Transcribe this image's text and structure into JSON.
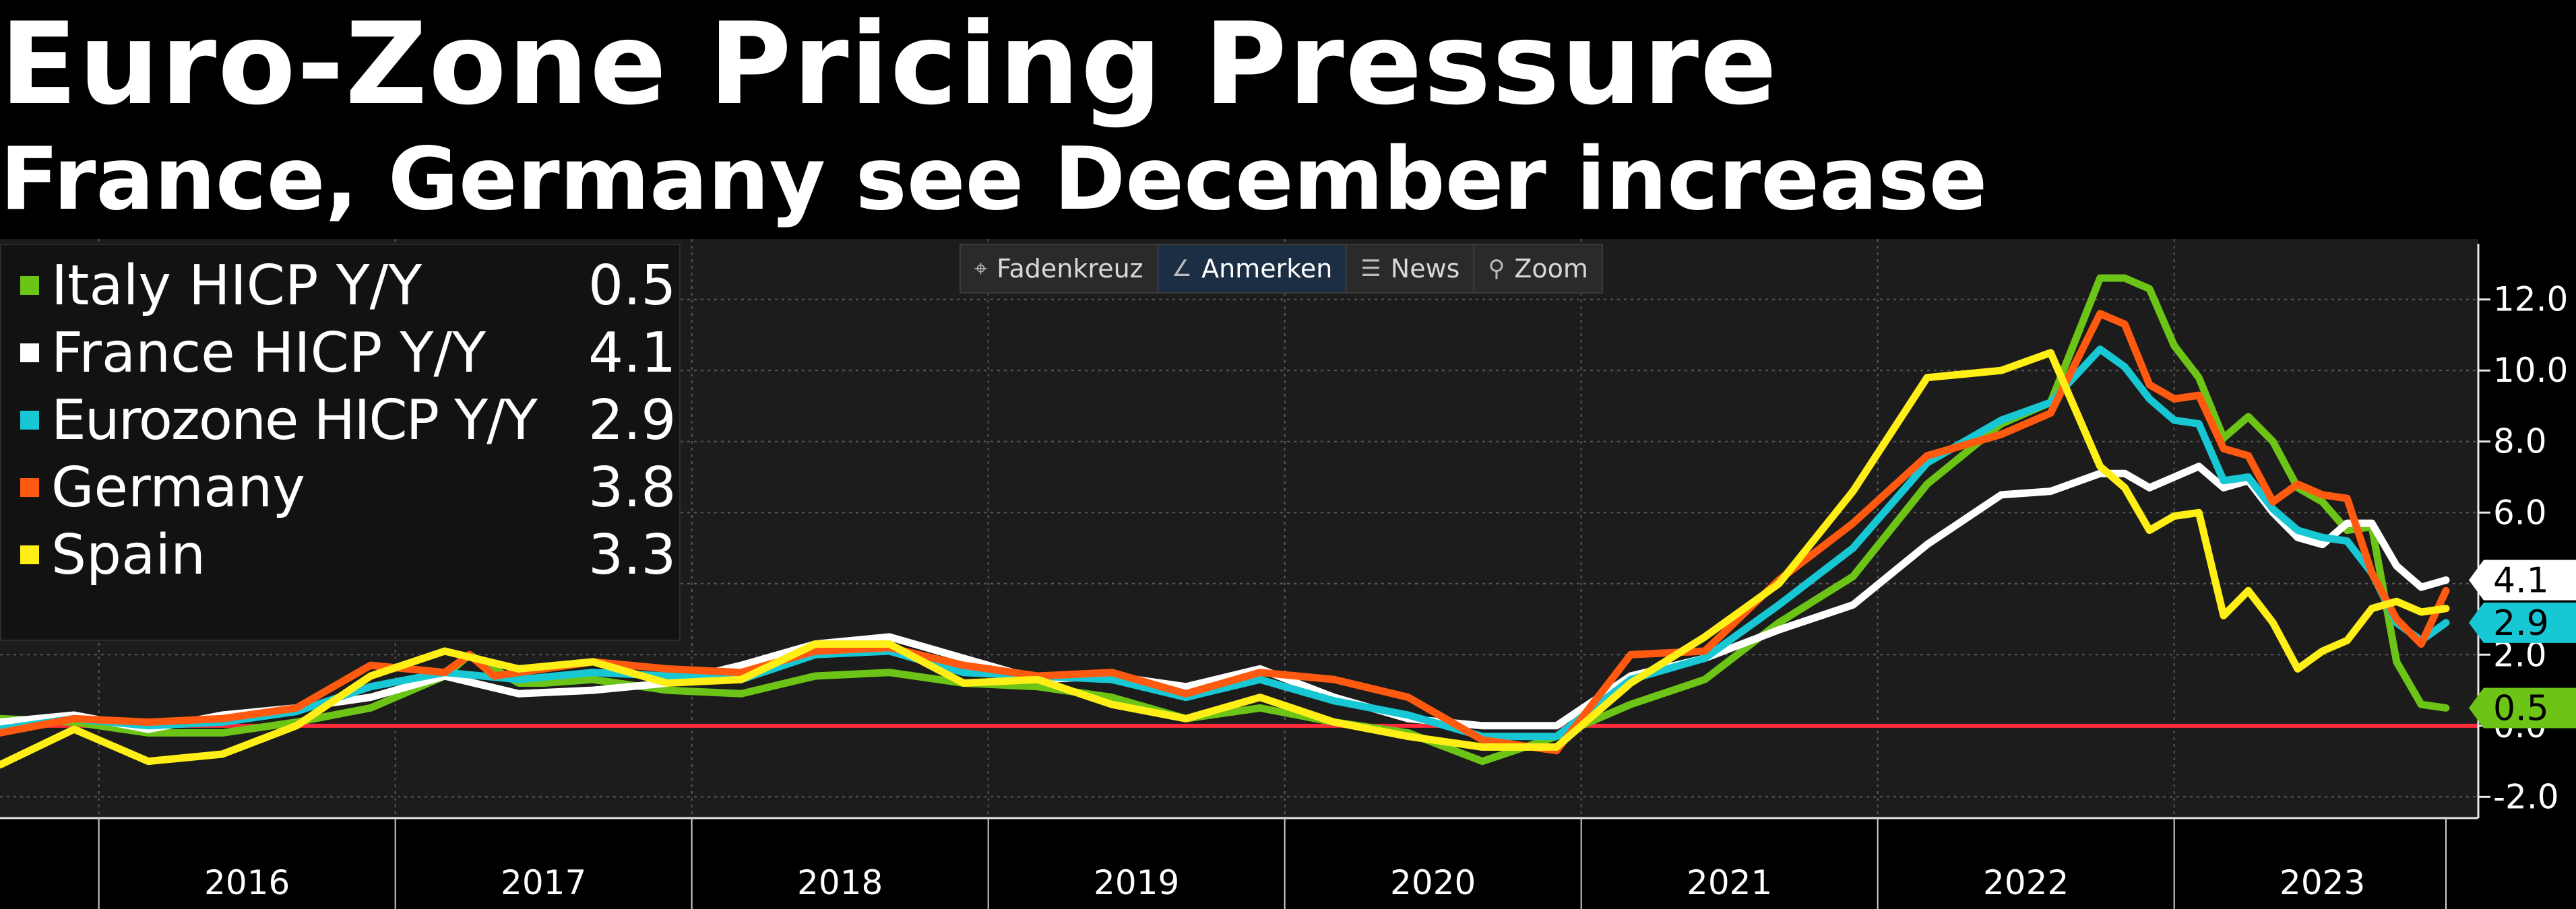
{
  "header": {
    "title": "Euro-Zone Pricing Pressure",
    "subtitle": "France, Germany see December increase"
  },
  "toolbar": {
    "items": [
      {
        "label": "Fadenkreuz",
        "icon": "crosshair-icon"
      },
      {
        "label": "Anmerken",
        "icon": "pen-icon"
      },
      {
        "label": "News",
        "icon": "news-icon"
      },
      {
        "label": "Zoom",
        "icon": "magnifier-icon"
      }
    ]
  },
  "legend": {
    "items": [
      {
        "label": "Italy HICP Y/Y",
        "value": "0.5",
        "color": "#6cc417"
      },
      {
        "label": "France HICP Y/Y",
        "value": "4.1",
        "color": "#ffffff"
      },
      {
        "label": "Eurozone HICP Y/Y",
        "value": "2.9",
        "color": "#17c7d4"
      },
      {
        "label": "Germany",
        "value": "3.8",
        "color": "#ff5a0f"
      },
      {
        "label": "Spain",
        "value": "3.3",
        "color": "#ffef17"
      }
    ]
  },
  "chart_data": {
    "type": "line",
    "title": "Euro-Zone Pricing Pressure",
    "subtitle": "France, Germany see December increase",
    "x_tick_labels": [
      "2016",
      "2017",
      "2018",
      "2019",
      "2020",
      "2021",
      "2022",
      "2023"
    ],
    "y_ticks": [
      "12.0",
      "10.0",
      "8.0",
      "6.0",
      "4.0",
      "2.0",
      "0.0",
      "-2.0"
    ],
    "ylim": [
      -2.6,
      13.7
    ],
    "x_range": [
      "2015-09",
      "2023-12"
    ],
    "zero_line_color": "#ff2a3a",
    "grid": true,
    "legend_position": "top-left",
    "series": [
      {
        "name": "Italy HICP Y/Y",
        "color": "#6cc417",
        "last_label": "0.5",
        "points": [
          [
            "2015-09",
            0.2
          ],
          [
            "2015-12",
            0.1
          ],
          [
            "2016-03",
            -0.2
          ],
          [
            "2016-06",
            -0.2
          ],
          [
            "2016-09",
            0.1
          ],
          [
            "2016-12",
            0.5
          ],
          [
            "2017-03",
            1.4
          ],
          [
            "2017-04",
            2.0
          ],
          [
            "2017-05",
            1.6
          ],
          [
            "2017-06",
            1.2
          ],
          [
            "2017-07",
            1.2
          ],
          [
            "2017-09",
            1.3
          ],
          [
            "2017-12",
            1.0
          ],
          [
            "2018-03",
            0.9
          ],
          [
            "2018-06",
            1.4
          ],
          [
            "2018-09",
            1.5
          ],
          [
            "2018-12",
            1.2
          ],
          [
            "2019-03",
            1.1
          ],
          [
            "2019-06",
            0.8
          ],
          [
            "2019-09",
            0.2
          ],
          [
            "2019-12",
            0.5
          ],
          [
            "2020-03",
            0.1
          ],
          [
            "2020-06",
            -0.2
          ],
          [
            "2020-09",
            -1.0
          ],
          [
            "2020-12",
            -0.3
          ],
          [
            "2021-03",
            0.6
          ],
          [
            "2021-06",
            1.3
          ],
          [
            "2021-09",
            2.9
          ],
          [
            "2021-12",
            4.2
          ],
          [
            "2022-03",
            6.8
          ],
          [
            "2022-06",
            8.5
          ],
          [
            "2022-08",
            9.1
          ],
          [
            "2022-10",
            12.6
          ],
          [
            "2022-11",
            12.6
          ],
          [
            "2022-12",
            12.3
          ],
          [
            "2023-01",
            10.7
          ],
          [
            "2023-02",
            9.8
          ],
          [
            "2023-03",
            8.1
          ],
          [
            "2023-04",
            8.7
          ],
          [
            "2023-05",
            8.0
          ],
          [
            "2023-06",
            6.7
          ],
          [
            "2023-07",
            6.3
          ],
          [
            "2023-08",
            5.5
          ],
          [
            "2023-09",
            5.6
          ],
          [
            "2023-10",
            1.8
          ],
          [
            "2023-11",
            0.6
          ],
          [
            "2023-12",
            0.5
          ]
        ]
      },
      {
        "name": "France HICP Y/Y",
        "color": "#ffffff",
        "last_label": "4.1",
        "points": [
          [
            "2015-09",
            0.1
          ],
          [
            "2015-12",
            0.3
          ],
          [
            "2016-03",
            -0.1
          ],
          [
            "2016-06",
            0.3
          ],
          [
            "2016-09",
            0.5
          ],
          [
            "2016-12",
            0.8
          ],
          [
            "2017-03",
            1.4
          ],
          [
            "2017-06",
            0.9
          ],
          [
            "2017-09",
            1.0
          ],
          [
            "2017-12",
            1.2
          ],
          [
            "2018-03",
            1.7
          ],
          [
            "2018-06",
            2.3
          ],
          [
            "2018-09",
            2.5
          ],
          [
            "2018-12",
            1.9
          ],
          [
            "2019-03",
            1.3
          ],
          [
            "2019-06",
            1.4
          ],
          [
            "2019-09",
            1.1
          ],
          [
            "2019-12",
            1.6
          ],
          [
            "2020-03",
            0.8
          ],
          [
            "2020-06",
            0.2
          ],
          [
            "2020-09",
            0.0
          ],
          [
            "2020-12",
            0.0
          ],
          [
            "2021-03",
            1.4
          ],
          [
            "2021-06",
            1.9
          ],
          [
            "2021-09",
            2.7
          ],
          [
            "2021-12",
            3.4
          ],
          [
            "2022-03",
            5.1
          ],
          [
            "2022-06",
            6.5
          ],
          [
            "2022-08",
            6.6
          ],
          [
            "2022-10",
            7.1
          ],
          [
            "2022-11",
            7.1
          ],
          [
            "2022-12",
            6.7
          ],
          [
            "2023-01",
            7.0
          ],
          [
            "2023-02",
            7.3
          ],
          [
            "2023-03",
            6.7
          ],
          [
            "2023-04",
            6.9
          ],
          [
            "2023-05",
            6.0
          ],
          [
            "2023-06",
            5.3
          ],
          [
            "2023-07",
            5.1
          ],
          [
            "2023-08",
            5.7
          ],
          [
            "2023-09",
            5.7
          ],
          [
            "2023-10",
            4.5
          ],
          [
            "2023-11",
            3.9
          ],
          [
            "2023-12",
            4.1
          ]
        ]
      },
      {
        "name": "Eurozone HICP Y/Y",
        "color": "#17c7d4",
        "last_label": "2.9",
        "points": [
          [
            "2015-09",
            -0.1
          ],
          [
            "2015-12",
            0.2
          ],
          [
            "2016-03",
            0.0
          ],
          [
            "2016-06",
            0.1
          ],
          [
            "2016-09",
            0.4
          ],
          [
            "2016-12",
            1.1
          ],
          [
            "2017-03",
            1.5
          ],
          [
            "2017-06",
            1.3
          ],
          [
            "2017-09",
            1.5
          ],
          [
            "2017-12",
            1.4
          ],
          [
            "2018-03",
            1.3
          ],
          [
            "2018-06",
            2.0
          ],
          [
            "2018-09",
            2.1
          ],
          [
            "2018-12",
            1.5
          ],
          [
            "2019-03",
            1.4
          ],
          [
            "2019-06",
            1.3
          ],
          [
            "2019-09",
            0.8
          ],
          [
            "2019-12",
            1.3
          ],
          [
            "2020-03",
            0.7
          ],
          [
            "2020-06",
            0.3
          ],
          [
            "2020-09",
            -0.3
          ],
          [
            "2020-12",
            -0.3
          ],
          [
            "2021-03",
            1.3
          ],
          [
            "2021-06",
            1.9
          ],
          [
            "2021-09",
            3.4
          ],
          [
            "2021-12",
            5.0
          ],
          [
            "2022-03",
            7.4
          ],
          [
            "2022-06",
            8.6
          ],
          [
            "2022-08",
            9.1
          ],
          [
            "2022-10",
            10.6
          ],
          [
            "2022-11",
            10.1
          ],
          [
            "2022-12",
            9.2
          ],
          [
            "2023-01",
            8.6
          ],
          [
            "2023-02",
            8.5
          ],
          [
            "2023-03",
            6.9
          ],
          [
            "2023-04",
            7.0
          ],
          [
            "2023-05",
            6.1
          ],
          [
            "2023-06",
            5.5
          ],
          [
            "2023-07",
            5.3
          ],
          [
            "2023-08",
            5.2
          ],
          [
            "2023-09",
            4.3
          ],
          [
            "2023-10",
            2.9
          ],
          [
            "2023-11",
            2.4
          ],
          [
            "2023-12",
            2.9
          ]
        ]
      },
      {
        "name": "Germany",
        "color": "#ff5a0f",
        "last_label": "3.8",
        "points": [
          [
            "2015-09",
            -0.2
          ],
          [
            "2015-12",
            0.2
          ],
          [
            "2016-03",
            0.1
          ],
          [
            "2016-06",
            0.2
          ],
          [
            "2016-09",
            0.5
          ],
          [
            "2016-12",
            1.7
          ],
          [
            "2017-03",
            1.5
          ],
          [
            "2017-04",
            2.0
          ],
          [
            "2017-05",
            1.4
          ],
          [
            "2017-06",
            1.5
          ],
          [
            "2017-09",
            1.8
          ],
          [
            "2017-12",
            1.6
          ],
          [
            "2018-03",
            1.5
          ],
          [
            "2018-06",
            2.1
          ],
          [
            "2018-09",
            2.2
          ],
          [
            "2018-12",
            1.7
          ],
          [
            "2019-03",
            1.4
          ],
          [
            "2019-06",
            1.5
          ],
          [
            "2019-09",
            0.9
          ],
          [
            "2019-12",
            1.5
          ],
          [
            "2020-03",
            1.3
          ],
          [
            "2020-06",
            0.8
          ],
          [
            "2020-09",
            -0.4
          ],
          [
            "2020-12",
            -0.7
          ],
          [
            "2021-03",
            2.0
          ],
          [
            "2021-06",
            2.1
          ],
          [
            "2021-09",
            4.1
          ],
          [
            "2021-12",
            5.7
          ],
          [
            "2022-03",
            7.6
          ],
          [
            "2022-06",
            8.2
          ],
          [
            "2022-08",
            8.8
          ],
          [
            "2022-10",
            11.6
          ],
          [
            "2022-11",
            11.3
          ],
          [
            "2022-12",
            9.6
          ],
          [
            "2023-01",
            9.2
          ],
          [
            "2023-02",
            9.3
          ],
          [
            "2023-03",
            7.8
          ],
          [
            "2023-04",
            7.6
          ],
          [
            "2023-05",
            6.3
          ],
          [
            "2023-06",
            6.8
          ],
          [
            "2023-07",
            6.5
          ],
          [
            "2023-08",
            6.4
          ],
          [
            "2023-09",
            4.3
          ],
          [
            "2023-10",
            3.0
          ],
          [
            "2023-11",
            2.3
          ],
          [
            "2023-12",
            3.8
          ]
        ]
      },
      {
        "name": "Spain",
        "color": "#ffef17",
        "last_label": "3.3",
        "points": [
          [
            "2015-09",
            -1.1
          ],
          [
            "2015-12",
            -0.1
          ],
          [
            "2016-03",
            -1.0
          ],
          [
            "2016-06",
            -0.8
          ],
          [
            "2016-09",
            0.0
          ],
          [
            "2016-12",
            1.4
          ],
          [
            "2017-03",
            2.1
          ],
          [
            "2017-06",
            1.6
          ],
          [
            "2017-09",
            1.8
          ],
          [
            "2017-12",
            1.2
          ],
          [
            "2018-03",
            1.3
          ],
          [
            "2018-06",
            2.3
          ],
          [
            "2018-09",
            2.3
          ],
          [
            "2018-12",
            1.2
          ],
          [
            "2019-03",
            1.3
          ],
          [
            "2019-06",
            0.6
          ],
          [
            "2019-09",
            0.2
          ],
          [
            "2019-12",
            0.8
          ],
          [
            "2020-03",
            0.1
          ],
          [
            "2020-06",
            -0.3
          ],
          [
            "2020-09",
            -0.6
          ],
          [
            "2020-12",
            -0.6
          ],
          [
            "2021-03",
            1.2
          ],
          [
            "2021-06",
            2.5
          ],
          [
            "2021-09",
            4.0
          ],
          [
            "2021-12",
            6.6
          ],
          [
            "2022-03",
            9.8
          ],
          [
            "2022-06",
            10.0
          ],
          [
            "2022-08",
            10.5
          ],
          [
            "2022-10",
            7.3
          ],
          [
            "2022-11",
            6.7
          ],
          [
            "2022-12",
            5.5
          ],
          [
            "2023-01",
            5.9
          ],
          [
            "2023-02",
            6.0
          ],
          [
            "2023-03",
            3.1
          ],
          [
            "2023-04",
            3.8
          ],
          [
            "2023-05",
            2.9
          ],
          [
            "2023-06",
            1.6
          ],
          [
            "2023-07",
            2.1
          ],
          [
            "2023-08",
            2.4
          ],
          [
            "2023-09",
            3.3
          ],
          [
            "2023-10",
            3.5
          ],
          [
            "2023-11",
            3.2
          ],
          [
            "2023-12",
            3.3
          ]
        ]
      }
    ]
  }
}
